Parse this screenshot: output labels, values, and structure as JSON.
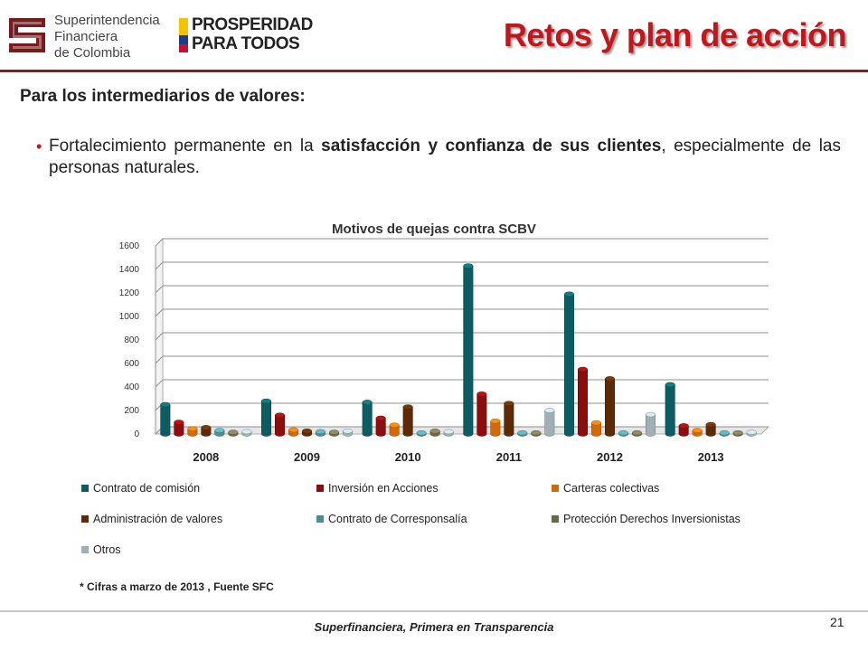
{
  "header": {
    "sfc_logo_lines": [
      "Superintendencia",
      "Financiera",
      "de Colombia"
    ],
    "prosperidad_lines": [
      "PROSPERIDAD",
      "PARA TODOS"
    ],
    "title": "Retos y plan de acción"
  },
  "subtitle": "Para los intermediarios de valores:",
  "bullet": {
    "before": "Fortalecimiento permanente en la ",
    "bold": "satisfacción y confianza de sus clientes",
    "after": ", especialmente de las personas naturales."
  },
  "chart_data": {
    "type": "bar",
    "title": "Motivos de quejas contra SCBV",
    "categories": [
      "2008",
      "2009",
      "2010",
      "2011",
      "2012",
      "2013"
    ],
    "ylim": [
      0,
      1600
    ],
    "yticks": [
      0,
      200,
      400,
      600,
      800,
      1000,
      1200,
      1400,
      1600
    ],
    "grid": true,
    "legend_position": "bottom",
    "series": [
      {
        "name": "Contrato de comisión",
        "color": "#0b5d63",
        "values": [
          250,
          280,
          270,
          1430,
          1190,
          420
        ]
      },
      {
        "name": "Inversión en Acciones",
        "color": "#8b0d0d",
        "values": [
          100,
          160,
          135,
          340,
          550,
          70
        ]
      },
      {
        "name": "Carteras colectivas",
        "color": "#d06b09",
        "values": [
          45,
          35,
          75,
          110,
          95,
          30
        ]
      },
      {
        "name": "Administración de valores",
        "color": "#5c2a06",
        "values": [
          55,
          25,
          230,
          260,
          470,
          80
        ]
      },
      {
        "name": "Contrato de Corresponsalía",
        "color": "#4a8d92",
        "values": [
          30,
          20,
          10,
          10,
          10,
          10
        ]
      },
      {
        "name": "Protección Derechos Inversionistas",
        "color": "#6b6a48",
        "values": [
          15,
          15,
          25,
          10,
          10,
          10
        ]
      },
      {
        "name": "Otros",
        "color": "#9fb0b4",
        "values": [
          20,
          25,
          20,
          200,
          165,
          15
        ]
      }
    ]
  },
  "footnote": "* Cifras a marzo de 2013 ,  Fuente SFC",
  "footer": {
    "text": "Superfinanciera, Primera en Transparencia",
    "page_number": "21"
  }
}
